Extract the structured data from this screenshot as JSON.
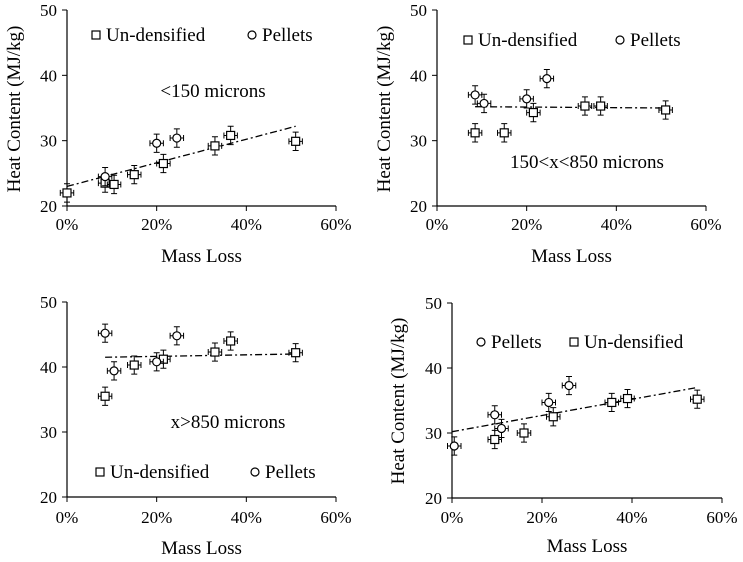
{
  "chart_data": [
    {
      "type": "scatter",
      "xlabel": "Mass Loss",
      "ylabel": "Heat Content (MJ/kg)",
      "xlim": [
        0,
        60
      ],
      "ylim": [
        20,
        50
      ],
      "xticks": [
        "0%",
        "20%",
        "40%",
        "60%"
      ],
      "yticks": [
        "20",
        "30",
        "40",
        "50"
      ],
      "annotation": "<150 microns",
      "legend_placement": "top",
      "series": [
        {
          "name": "Un-densified",
          "marker": "square",
          "x": [
            0,
            8.5,
            10.5,
            15,
            21.5,
            33,
            36.5,
            51
          ],
          "y": [
            22,
            23.5,
            23.3,
            24.8,
            26.5,
            29.2,
            30.8,
            29.9
          ]
        },
        {
          "name": "Pellets",
          "marker": "circle",
          "x": [
            8.5,
            20,
            24.5
          ],
          "y": [
            24.5,
            29.6,
            30.4
          ]
        }
      ],
      "trendline": {
        "from": [
          0,
          23.0
        ],
        "to": [
          51,
          32.2
        ]
      }
    },
    {
      "type": "scatter",
      "xlabel": "Mass Loss",
      "ylabel": "Heat Content (MJ/kg)",
      "xlim": [
        0,
        60
      ],
      "ylim": [
        20,
        50
      ],
      "xticks": [
        "0%",
        "20%",
        "40%",
        "60%"
      ],
      "yticks": [
        "20",
        "30",
        "40",
        "50"
      ],
      "annotation": "150<x<850 microns",
      "legend_placement": "top",
      "series": [
        {
          "name": "Un-densified",
          "marker": "square",
          "x": [
            8.5,
            15,
            21.5,
            33,
            36.5,
            51
          ],
          "y": [
            31.2,
            31.2,
            34.3,
            35.3,
            35.3,
            34.7
          ]
        },
        {
          "name": "Pellets",
          "marker": "circle",
          "x": [
            8.5,
            10.5,
            20,
            24.5
          ],
          "y": [
            37,
            35.7,
            36.4,
            39.5
          ]
        }
      ],
      "trendline": {
        "from": [
          8.5,
          35.2
        ],
        "to": [
          51,
          35.0
        ]
      }
    },
    {
      "type": "scatter",
      "xlabel": "Mass Loss",
      "ylabel": "",
      "xlim": [
        0,
        60
      ],
      "ylim": [
        20,
        50
      ],
      "xticks": [
        "0%",
        "20%",
        "40%",
        "60%"
      ],
      "yticks": [
        "20",
        "30",
        "40",
        "50"
      ],
      "annotation": "x>850 microns",
      "legend_placement": "bottom",
      "series": [
        {
          "name": "Un-densified",
          "marker": "square",
          "x": [
            8.5,
            15,
            21.5,
            33,
            36.5,
            51
          ],
          "y": [
            35.5,
            40.3,
            41.2,
            42.3,
            44,
            42.2
          ]
        },
        {
          "name": "Pellets",
          "marker": "circle",
          "x": [
            8.5,
            10.5,
            20,
            24.5
          ],
          "y": [
            45.2,
            39.4,
            40.8,
            44.8
          ]
        }
      ],
      "trendline": {
        "from": [
          8.5,
          41.5
        ],
        "to": [
          51,
          42.0
        ]
      }
    },
    {
      "type": "scatter",
      "xlabel": "Mass Loss",
      "ylabel": "Heat Content (MJ/kg)",
      "xlim": [
        0,
        60
      ],
      "ylim": [
        20,
        50
      ],
      "xticks": [
        "0%",
        "20%",
        "40%",
        "60%"
      ],
      "yticks": [
        "20",
        "30",
        "40",
        "50"
      ],
      "annotation": "",
      "legend_placement": "top",
      "legend_order": [
        "Pellets",
        "Un-densified"
      ],
      "series": [
        {
          "name": "Un-densified",
          "marker": "square",
          "x": [
            9.5,
            16,
            22.5,
            35.5,
            39,
            54.5
          ],
          "y": [
            29,
            30,
            32.5,
            34.7,
            35.3,
            35.2
          ]
        },
        {
          "name": "Pellets",
          "marker": "circle",
          "x": [
            0.5,
            9.5,
            11,
            21.5,
            26
          ],
          "y": [
            28,
            32.8,
            30.7,
            34.7,
            37.3
          ]
        }
      ],
      "trendline": {
        "from": [
          0,
          30.2
        ],
        "to": [
          54.5,
          37.0
        ]
      }
    }
  ]
}
